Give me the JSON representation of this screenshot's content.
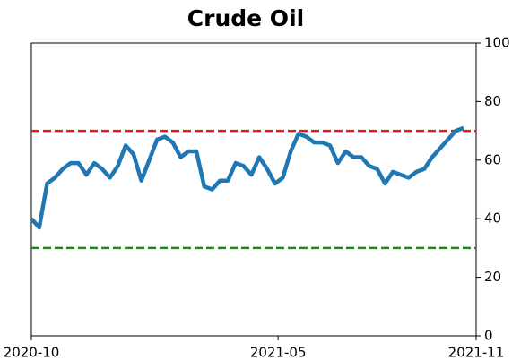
{
  "chart_data": {
    "type": "line",
    "title": "Crude Oil",
    "x": [
      0,
      1,
      2,
      3,
      4,
      5,
      6,
      7,
      8,
      9,
      10,
      11,
      12,
      13,
      14,
      15,
      16,
      17,
      18,
      19,
      20,
      21,
      22,
      23,
      24,
      25,
      26,
      27,
      28,
      29,
      30,
      31,
      32,
      33,
      34,
      35,
      36,
      37,
      38,
      39,
      40,
      41,
      42,
      43,
      44,
      45,
      46,
      47,
      48,
      49,
      50,
      51,
      52,
      53,
      54,
      55
    ],
    "series": [
      {
        "color": "#1f77b4",
        "values": [
          40,
          37,
          52,
          54,
          57,
          59,
          59,
          55,
          59,
          57,
          54,
          58,
          65,
          62,
          53,
          60,
          67,
          68,
          66,
          61,
          63,
          63,
          51,
          50,
          53,
          53,
          59,
          58,
          55,
          61,
          57,
          52,
          54,
          63,
          69,
          68,
          66,
          66,
          65,
          59,
          63,
          61,
          61,
          58,
          57,
          52,
          56,
          55,
          54,
          56,
          57,
          61,
          64,
          67,
          70,
          71
        ]
      }
    ],
    "xlim": [
      0,
      56.6
    ],
    "xticks": [
      {
        "value": 0,
        "label": "2020-10"
      },
      {
        "value": 31.4,
        "label": "2021-05"
      },
      {
        "value": 56.6,
        "label": "2021-11"
      }
    ],
    "ylim": [
      0,
      100
    ],
    "yticks": [
      0,
      20,
      40,
      60,
      80,
      100
    ],
    "reference_lines": [
      {
        "value": 70,
        "color": "#e31a1c"
      },
      {
        "value": 30,
        "color": "#1a8a1a"
      }
    ]
  }
}
